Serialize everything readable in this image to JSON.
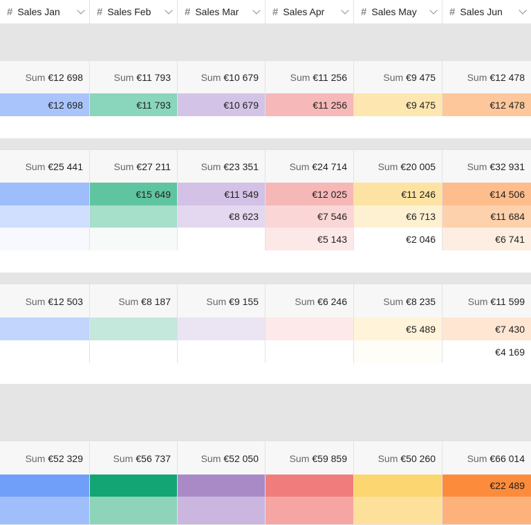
{
  "columns": [
    {
      "title": "Sales Jan",
      "icon": "hash-icon"
    },
    {
      "title": "Sales Feb",
      "icon": "hash-icon"
    },
    {
      "title": "Sales Mar",
      "icon": "hash-icon"
    },
    {
      "title": "Sales Apr",
      "icon": "hash-icon"
    },
    {
      "title": "Sales May",
      "icon": "hash-icon"
    },
    {
      "title": "Sales Jun",
      "icon": "hash-icon"
    }
  ],
  "sum_label": "Sum",
  "groups": [
    {
      "sums": [
        "€12 698",
        "€11 793",
        "€10 679",
        "€11 256",
        "€9 475",
        "€12 478"
      ],
      "rows": [
        {
          "values": [
            "€12 698",
            "€11 793",
            "€10 679",
            "€11 256",
            "€9 475",
            "€12 478"
          ],
          "colors": [
            "#a9c4fb",
            "#89d6bc",
            "#d3c4e7",
            "#f6b8b8",
            "#fee6b0",
            "#fdc79b"
          ]
        }
      ]
    },
    {
      "sums": [
        "€25 441",
        "€27 211",
        "€23 351",
        "€24 714",
        "€20 005",
        "€32 931"
      ],
      "rows": [
        {
          "values": [
            "",
            "€15 649",
            "€11 549",
            "€12 025",
            "€11 246",
            "€14 506"
          ],
          "colors": [
            "#9dbdfb",
            "#5fc5a1",
            "#d3c1e6",
            "#f6b7b7",
            "#fde3a3",
            "#fdbd8c"
          ]
        },
        {
          "values": [
            "",
            "",
            "€8 623",
            "€7 546",
            "€6 713",
            "€11 684"
          ],
          "colors": [
            "#cfdffd",
            "#a6dfca",
            "#e3d8ef",
            "#fad6d6",
            "#fef1d2",
            "#fed1ad"
          ]
        },
        {
          "values": [
            "",
            "",
            "",
            "€5 143",
            "€2 046",
            "€6 741"
          ],
          "colors": [
            "#f7f9ff",
            "#f6fbf9",
            "#ffffff",
            "#fde8e8",
            "#ffffff",
            "#feeee1"
          ]
        }
      ]
    },
    {
      "sums": [
        "€12 503",
        "€8 187",
        "€9 155",
        "€6 246",
        "€8 235",
        "€11 599"
      ],
      "rows": [
        {
          "values": [
            "",
            "",
            "",
            "",
            "€5 489",
            "€7 430"
          ],
          "colors": [
            "#c2d5fc",
            "#c4e8dc",
            "#ebe4f3",
            "#fde9e9",
            "#fff3da",
            "#fee6d2"
          ]
        },
        {
          "values": [
            "",
            "",
            "",
            "",
            "",
            "€4 169"
          ],
          "colors": [
            "#ffffff",
            "#ffffff",
            "#ffffff",
            "#ffffff",
            "#fffdf7",
            "#ffffff"
          ]
        }
      ]
    },
    {
      "sums": [
        "€52 329",
        "€56 737",
        "€52 050",
        "€59 859",
        "€50 260",
        "€66 014"
      ],
      "rows": [
        {
          "values": [
            "",
            "",
            "",
            "",
            "",
            "€22 489"
          ],
          "colors": [
            "#6f9ff8",
            "#14a574",
            "#a98ac7",
            "#f17c7c",
            "#fcd670",
            "#fc8c3c"
          ]
        },
        {
          "values": [
            "",
            "",
            "",
            "",
            "",
            ""
          ],
          "colors": [
            "#a0bffa",
            "#8dd4bb",
            "#cbb6df",
            "#f6a5a5",
            "#fde09a",
            "#fdb27c"
          ]
        }
      ]
    }
  ]
}
